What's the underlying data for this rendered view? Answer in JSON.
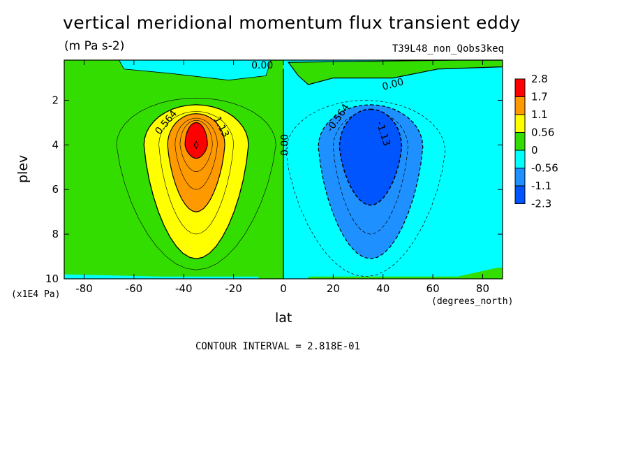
{
  "chart_data": {
    "type": "heatmap",
    "title": "vertical meridional momentum flux transient eddy",
    "units": "(m Pa s-2)",
    "run_name": "T39L48_non_Qobs3keq",
    "xlabel": "lat",
    "ylabel": "plev",
    "x_units": "(degrees_north)",
    "y_units": "(x1E4 Pa)",
    "xlim": [
      -88,
      88
    ],
    "ylim": [
      10,
      0.2
    ],
    "x_ticks": [
      "-80",
      "-60",
      "-40",
      "-20",
      "0",
      "20",
      "40",
      "60",
      "80"
    ],
    "x_tick_values": [
      -80,
      -60,
      -40,
      -20,
      0,
      20,
      40,
      60,
      80
    ],
    "y_ticks": [
      "2",
      "4",
      "6",
      "8",
      "10"
    ],
    "y_tick_values": [
      2,
      4,
      6,
      8,
      10
    ],
    "contour_interval_text": "CONTOUR INTERVAL = 2.818E-01",
    "contour_labels": [
      "0.564",
      "1.13",
      "0.00",
      "0.00",
      "0.00",
      "-0.564",
      "-1.13"
    ],
    "colorbar": {
      "labels": [
        "2.8",
        "1.7",
        "1.1",
        "0.56",
        "0",
        "-0.56",
        "-1.1",
        "-2.3"
      ],
      "colors": [
        "#ff0000",
        "#ff9900",
        "#ffff00",
        "#33dd00",
        "#00ffff",
        "#1e90ff",
        "#0055ff"
      ]
    },
    "features": [
      {
        "type": "max",
        "lat": -35,
        "plev": 4,
        "value": 2.8
      },
      {
        "type": "min",
        "lat": 35,
        "plev": 4,
        "value": -2.3
      }
    ]
  }
}
